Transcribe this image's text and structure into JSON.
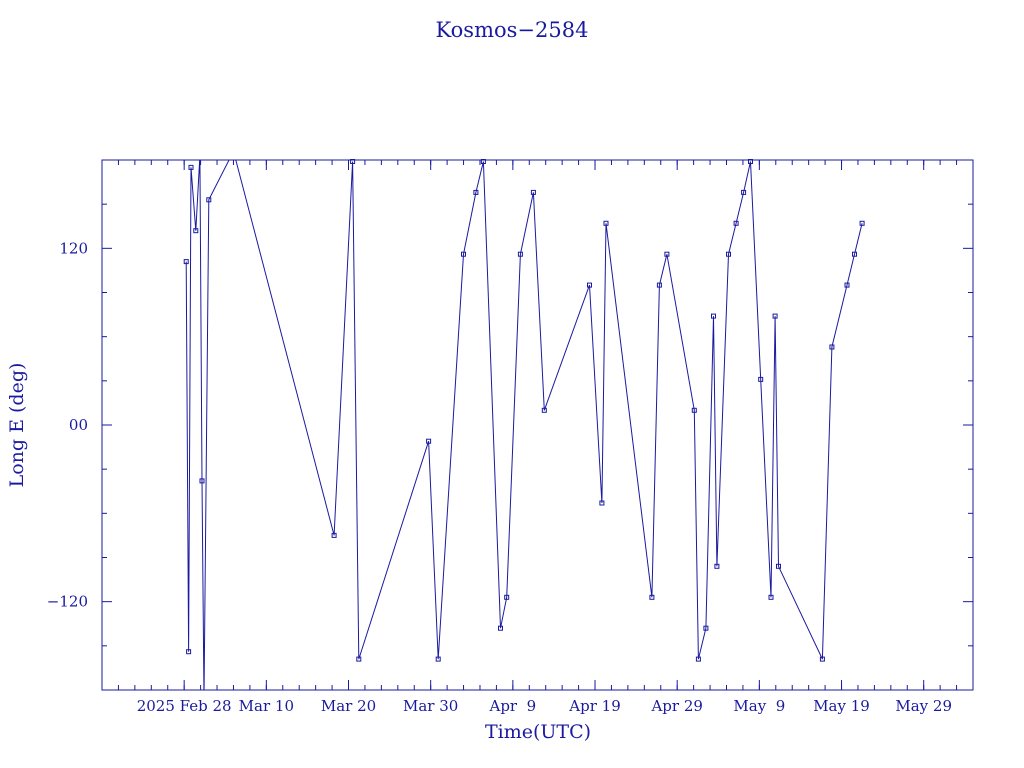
{
  "chart_data": {
    "type": "line",
    "title": "Kosmos−2584",
    "xlabel": "Time(UTC)",
    "ylabel": "Long E (deg)",
    "x_ticks": [
      {
        "label": "2025 Feb 28",
        "date": "2025-02-28"
      },
      {
        "label": "Mar 10",
        "date": "2025-03-10"
      },
      {
        "label": "Mar 20",
        "date": "2025-03-20"
      },
      {
        "label": "Mar 30",
        "date": "2025-03-30"
      },
      {
        "label": "Apr  9",
        "date": "2025-04-09"
      },
      {
        "label": "Apr 19",
        "date": "2025-04-19"
      },
      {
        "label": "Apr 29",
        "date": "2025-04-29"
      },
      {
        "label": "May  9",
        "date": "2025-05-09"
      },
      {
        "label": "May 19",
        "date": "2025-05-19"
      },
      {
        "label": "May 29",
        "date": "2025-05-29"
      }
    ],
    "y_ticks": [
      {
        "label": "120",
        "value": 120
      },
      {
        "label": "00",
        "value": 0
      },
      {
        "label": "−120",
        "value": -120
      }
    ],
    "xlim": [
      "2025-02-18",
      "2025-06-04"
    ],
    "ylim": [
      -180,
      180
    ],
    "color": "#1a1aa0",
    "series": [
      {
        "points": [
          {
            "x": "2025-02-28 06:00",
            "y": 111
          },
          {
            "x": "2025-02-28 13:00",
            "y": -154
          },
          {
            "x": "2025-02-28 20:00",
            "y": 175
          },
          {
            "x": "2025-03-01 10:00",
            "y": 132
          },
          {
            "x": "2025-03-01 22:00",
            "y": 183
          },
          {
            "x": "2025-03-02 04:00",
            "y": -38
          },
          {
            "x": "2025-03-02 10:00",
            "y": -186
          },
          {
            "x": "2025-03-03 00:00",
            "y": 153
          },
          {
            "x": "2025-03-06 00:00",
            "y": 186
          },
          {
            "x": "2025-03-18 06:00",
            "y": -75
          },
          {
            "x": "2025-03-20 12:00",
            "y": 179
          },
          {
            "x": "2025-03-21 06:00",
            "y": -159
          },
          {
            "x": "2025-03-29 18:00",
            "y": -11
          },
          {
            "x": "2025-03-30 22:00",
            "y": -159
          },
          {
            "x": "2025-04-03 00:00",
            "y": 116
          },
          {
            "x": "2025-04-04 12:00",
            "y": 158
          },
          {
            "x": "2025-04-05 10:00",
            "y": 179
          },
          {
            "x": "2025-04-07 12:00",
            "y": -138
          },
          {
            "x": "2025-04-08 06:00",
            "y": -117
          },
          {
            "x": "2025-04-09 22:00",
            "y": 116
          },
          {
            "x": "2025-04-11 12:00",
            "y": 158
          },
          {
            "x": "2025-04-12 20:00",
            "y": 10
          },
          {
            "x": "2025-04-18 08:00",
            "y": 95
          },
          {
            "x": "2025-04-19 20:00",
            "y": -53
          },
          {
            "x": "2025-04-20 08:00",
            "y": 137
          },
          {
            "x": "2025-04-25 22:00",
            "y": -117
          },
          {
            "x": "2025-04-26 20:00",
            "y": 95
          },
          {
            "x": "2025-04-27 18:00",
            "y": 116
          },
          {
            "x": "2025-05-01 02:00",
            "y": 10
          },
          {
            "x": "2025-05-01 14:00",
            "y": -159
          },
          {
            "x": "2025-05-02 12:00",
            "y": -138
          },
          {
            "x": "2025-05-03 10:00",
            "y": 74
          },
          {
            "x": "2025-05-03 20:00",
            "y": -96
          },
          {
            "x": "2025-05-05 06:00",
            "y": 116
          },
          {
            "x": "2025-05-06 04:00",
            "y": 137
          },
          {
            "x": "2025-05-07 02:00",
            "y": 158
          },
          {
            "x": "2025-05-07 22:00",
            "y": 179
          },
          {
            "x": "2025-05-09 04:00",
            "y": 31
          },
          {
            "x": "2025-05-10 10:00",
            "y": -117
          },
          {
            "x": "2025-05-10 22:00",
            "y": 74
          },
          {
            "x": "2025-05-11 08:00",
            "y": -96
          },
          {
            "x": "2025-05-16 16:00",
            "y": -159
          },
          {
            "x": "2025-05-17 20:00",
            "y": 53
          },
          {
            "x": "2025-05-19 16:00",
            "y": 95
          },
          {
            "x": "2025-05-20 14:00",
            "y": 116
          },
          {
            "x": "2025-05-21 12:00",
            "y": 137
          }
        ]
      }
    ]
  }
}
